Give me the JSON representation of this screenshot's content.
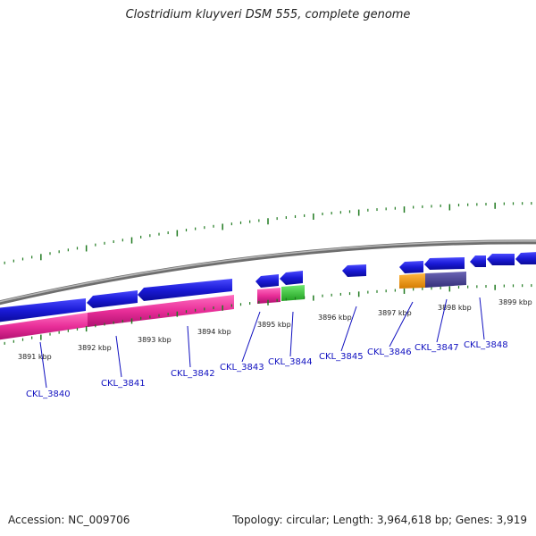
{
  "title": "Clostridium kluyveri DSM 555, complete genome",
  "footer": {
    "accession_label": "Accession: NC_009706",
    "meta": "Topology: circular; Length: 3,964,618 bp; Genes: 3,919"
  },
  "colors": {
    "backbone": "#8c8c8c",
    "cds_blue": "#1a1ad6",
    "pink": "#e82e98",
    "green": "#34c534",
    "orange": "#f29a18",
    "purple": "#4a4494",
    "tick": "#207a20",
    "label_blue": "#1010c0"
  },
  "ticks_kbp": [
    {
      "label": "3891 kbp"
    },
    {
      "label": "3892 kbp"
    },
    {
      "label": "3893 kbp"
    },
    {
      "label": "3894 kbp"
    },
    {
      "label": "3895 kbp"
    },
    {
      "label": "3896 kbp"
    },
    {
      "label": "3897 kbp"
    },
    {
      "label": "3898 kbp"
    },
    {
      "label": "3899 kbp"
    }
  ],
  "gene_labels": [
    "CKL_3840",
    "CKL_3841",
    "CKL_3842",
    "CKL_3843",
    "CKL_3844",
    "CKL_3845",
    "CKL_3846",
    "CKL_3847",
    "CKL_3848"
  ]
}
